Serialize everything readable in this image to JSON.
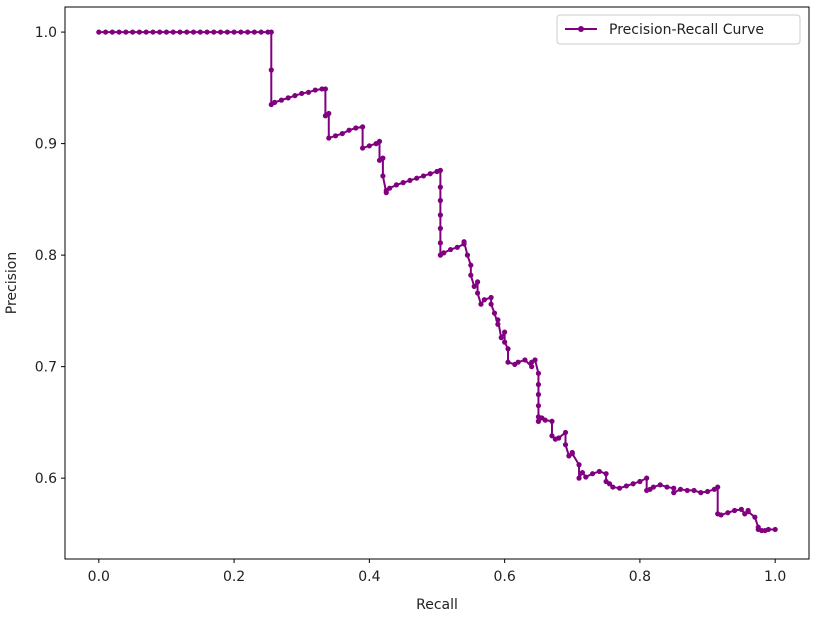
{
  "chart_data": {
    "type": "line",
    "title": "",
    "xlabel": "Recall",
    "ylabel": "Precision",
    "xlim": [
      -0.05,
      1.05
    ],
    "ylim": [
      0.5275,
      1.0225
    ],
    "xticks": [
      0.0,
      0.2,
      0.4,
      0.6,
      0.8,
      1.0
    ],
    "xtick_labels": [
      "0.0",
      "0.2",
      "0.4",
      "0.6",
      "0.8",
      "1.0"
    ],
    "yticks": [
      0.6,
      0.7,
      0.8,
      0.9,
      1.0
    ],
    "ytick_labels": [
      "0.6",
      "0.7",
      "0.8",
      "0.9",
      "1.0"
    ],
    "grid": false,
    "legend_position": "top-right",
    "series": [
      {
        "name": "Precision-Recall Curve",
        "color": "#800080",
        "marker": "circle",
        "x": [
          0.0,
          0.01,
          0.02,
          0.03,
          0.04,
          0.05,
          0.06,
          0.07,
          0.08,
          0.09,
          0.1,
          0.11,
          0.12,
          0.13,
          0.14,
          0.15,
          0.16,
          0.17,
          0.18,
          0.19,
          0.2,
          0.21,
          0.22,
          0.23,
          0.24,
          0.25,
          0.255,
          0.255,
          0.255,
          0.26,
          0.27,
          0.28,
          0.29,
          0.3,
          0.31,
          0.32,
          0.33,
          0.335,
          0.335,
          0.34,
          0.34,
          0.35,
          0.36,
          0.37,
          0.38,
          0.39,
          0.39,
          0.4,
          0.41,
          0.415,
          0.415,
          0.42,
          0.42,
          0.425,
          0.425,
          0.43,
          0.44,
          0.45,
          0.46,
          0.47,
          0.48,
          0.49,
          0.5,
          0.505,
          0.505,
          0.505,
          0.505,
          0.505,
          0.505,
          0.505,
          0.51,
          0.52,
          0.53,
          0.54,
          0.54,
          0.545,
          0.55,
          0.55,
          0.555,
          0.56,
          0.56,
          0.565,
          0.57,
          0.58,
          0.58,
          0.585,
          0.59,
          0.59,
          0.595,
          0.6,
          0.6,
          0.605,
          0.605,
          0.615,
          0.62,
          0.63,
          0.64,
          0.64,
          0.645,
          0.65,
          0.65,
          0.65,
          0.65,
          0.65,
          0.65,
          0.65,
          0.655,
          0.66,
          0.67,
          0.67,
          0.675,
          0.68,
          0.69,
          0.69,
          0.695,
          0.7,
          0.7,
          0.71,
          0.71,
          0.715,
          0.72,
          0.73,
          0.74,
          0.75,
          0.75,
          0.755,
          0.76,
          0.77,
          0.78,
          0.79,
          0.8,
          0.81,
          0.81,
          0.815,
          0.82,
          0.83,
          0.84,
          0.85,
          0.85,
          0.86,
          0.87,
          0.88,
          0.89,
          0.9,
          0.91,
          0.915,
          0.915,
          0.92,
          0.93,
          0.94,
          0.95,
          0.955,
          0.96,
          0.96,
          0.97,
          0.975,
          0.975,
          0.98,
          0.985,
          0.99,
          1.0
        ],
        "y": [
          1.0,
          1.0,
          1.0,
          1.0,
          1.0,
          1.0,
          1.0,
          1.0,
          1.0,
          1.0,
          1.0,
          1.0,
          1.0,
          1.0,
          1.0,
          1.0,
          1.0,
          1.0,
          1.0,
          1.0,
          1.0,
          1.0,
          1.0,
          1.0,
          1.0,
          1.0,
          1.0,
          0.966,
          0.935,
          0.937,
          0.939,
          0.941,
          0.943,
          0.945,
          0.946,
          0.948,
          0.949,
          0.949,
          0.925,
          0.927,
          0.905,
          0.907,
          0.909,
          0.912,
          0.914,
          0.915,
          0.896,
          0.898,
          0.9,
          0.902,
          0.885,
          0.887,
          0.871,
          0.856,
          0.858,
          0.86,
          0.863,
          0.865,
          0.867,
          0.869,
          0.871,
          0.873,
          0.875,
          0.876,
          0.861,
          0.849,
          0.836,
          0.824,
          0.811,
          0.8,
          0.802,
          0.805,
          0.807,
          0.81,
          0.812,
          0.8,
          0.791,
          0.782,
          0.772,
          0.776,
          0.766,
          0.756,
          0.76,
          0.762,
          0.756,
          0.748,
          0.738,
          0.742,
          0.726,
          0.731,
          0.722,
          0.716,
          0.704,
          0.702,
          0.704,
          0.706,
          0.7,
          0.704,
          0.706,
          0.694,
          0.684,
          0.675,
          0.665,
          0.655,
          0.651,
          0.651,
          0.654,
          0.652,
          0.651,
          0.638,
          0.635,
          0.636,
          0.641,
          0.63,
          0.62,
          0.623,
          0.622,
          0.612,
          0.6,
          0.605,
          0.601,
          0.604,
          0.606,
          0.604,
          0.597,
          0.595,
          0.592,
          0.591,
          0.593,
          0.595,
          0.597,
          0.6,
          0.589,
          0.59,
          0.592,
          0.594,
          0.592,
          0.591,
          0.587,
          0.59,
          0.589,
          0.589,
          0.587,
          0.588,
          0.59,
          0.592,
          0.568,
          0.567,
          0.569,
          0.571,
          0.572,
          0.568,
          0.571,
          0.57,
          0.565,
          0.556,
          0.554,
          0.553,
          0.553,
          0.554,
          0.554
        ]
      }
    ]
  }
}
